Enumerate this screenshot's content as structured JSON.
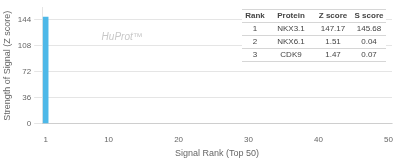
{
  "chart_data": {
    "type": "bar",
    "x": [
      1
    ],
    "values": [
      147.17
    ],
    "color": "#4db8e8",
    "xlabel": "Signal Rank (Top 50)",
    "ylabel": "Strength of Signal (Z score)",
    "xlim": [
      0.5,
      50.5
    ],
    "xticks": [
      1,
      10,
      20,
      30,
      40,
      50
    ],
    "ylim": [
      0,
      160
    ],
    "yticks": [
      0,
      36,
      72,
      108,
      144
    ],
    "grid": true,
    "annotations": [
      {
        "text": "HuProt™"
      }
    ],
    "table": [
      [
        "Rank",
        "Protein",
        "Z score",
        "S score"
      ],
      [
        "1",
        "NKX3.1",
        "147.17",
        "145.68"
      ],
      [
        "2",
        "NKX6.1",
        "1.51",
        "0.04"
      ],
      [
        "3",
        "CDK9",
        "1.47",
        "0.07"
      ]
    ]
  }
}
